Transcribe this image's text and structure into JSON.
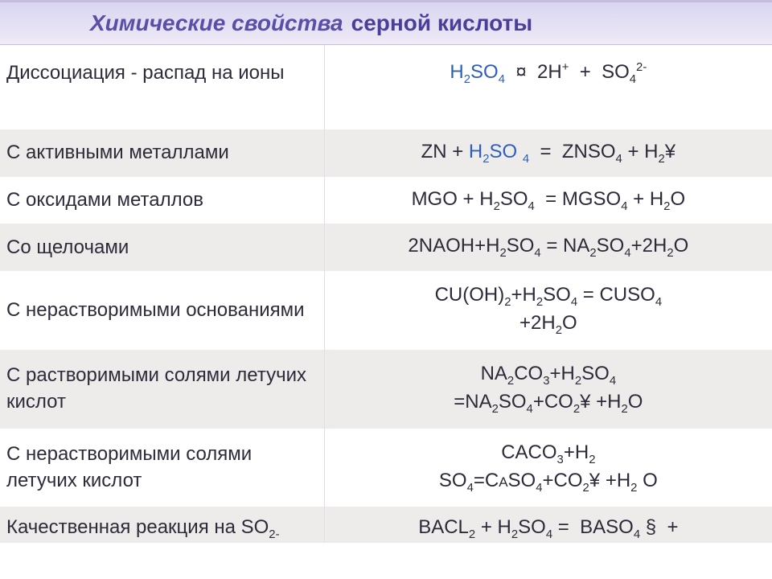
{
  "header": {
    "title_italic": "Химические свойства",
    "title_suffix": "серной кислоты"
  },
  "table": {
    "row_bg_light": "#ffffff",
    "row_bg_grey": "#eeecea",
    "text_color": "#2e2a3a",
    "blue_color": "#2e5fb8",
    "font_size": 24,
    "rows": [
      {
        "left": "Диссоциация  - распад на ионы",
        "right_html": "<span class='blue'>H<sub>2</sub>SO<sub>4</sub></span> &nbsp;¤&nbsp; 2H<sup>+</sup> &nbsp;+&nbsp; SO<sub>4</sub><sup>2-</sup>"
      },
      {
        "left": "С активными металлами",
        "right_html": "ZN + <span class='blue'>H<sub>2</sub>SO <sub>4</sub></span>&nbsp; = &nbsp;ZNSO<sub>4</sub> + H<sub>2</sub>¥"
      },
      {
        "left": "С оксидами металлов",
        "right_html": "MGO + H<sub>2</sub>SO<sub>4</sub>&nbsp; = MGSO<sub>4</sub> + H<sub>2</sub>O"
      },
      {
        "left": "Со щелочами",
        "right_html": "2NAOH+H<sub>2</sub>SO<sub>4</sub> = NA<sub>2</sub>SO<sub>4</sub>+2H<sub>2</sub>O"
      },
      {
        "left": "С нерастворимыми основаниями",
        "right_html": "CU(OH)<sub>2</sub>+H<sub>2</sub>SO<sub>4</sub> = CUSO<sub>4</sub><br>+2H<sub>2</sub>O"
      },
      {
        "left": "С  растворимыми солями летучих кислот",
        "right_html": "NA<sub>2</sub>CO<sub>3</sub>+H<sub>2</sub>SO<sub>4</sub><br>=NA<sub>2</sub>SO<sub>4</sub>+CO<sub>2</sub>¥ +H<sub>2</sub>O"
      },
      {
        "left": "С нерастворимыми солями летучих кислот",
        "right_html": "CACO<sub>3</sub>+H<sub>2</sub><br>SO<sub>4</sub>=<span style='font-variant:small-caps'>CaSO<sub>4</sub>+CO<sub>2</sub></span>¥ +H<sub>2</sub> O"
      },
      {
        "left": "Качественная реакция  на SO",
        "sub_cut": "2-",
        "right_html": "BACL<sub>2</sub> + H<sub>2</sub>SO<sub>4</sub> = &nbsp;B<span style='font-variant:small-caps'>ASO<sub>4</sub></span> §&nbsp; +"
      }
    ]
  }
}
